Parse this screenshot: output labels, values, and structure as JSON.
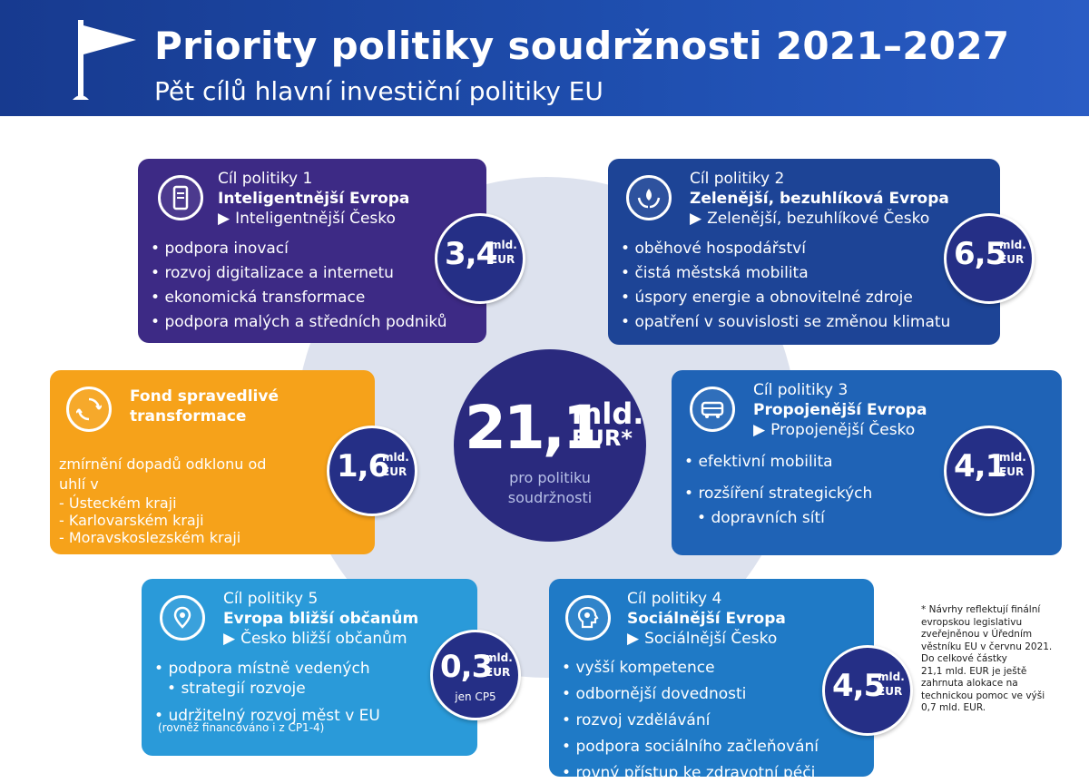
{
  "header": {
    "title": "Priority politiky soudržnosti 2021–2027",
    "subtitle": "Pět cílů hlavní investiční politiky EU",
    "icon": "flag-icon"
  },
  "center": {
    "amount": "21,1",
    "unit_top": "mld.",
    "unit_bottom": "EUR*",
    "caption_1": "pro politiku",
    "caption_2": "soudržnosti"
  },
  "goals": [
    {
      "number": "Cíl politiky 1",
      "name": "Inteligentnější Evropa",
      "cz": "Inteligentnější Česko",
      "icon": "smartphone-icon",
      "amount": "3,4",
      "bullets": [
        "podpora inovací",
        "rozvoj digitalizace a internetu",
        "ekonomická transformace",
        "podpora malých a středních podniků"
      ]
    },
    {
      "number": "Cíl politiky 2",
      "name": "Zelenější, bezuhlíková Evropa",
      "cz": "Zelenější, bezuhlíkové Česko",
      "icon": "leaf-hands-icon",
      "amount": "6,5",
      "bullets": [
        "oběhové hospodářství",
        "čistá městská mobilita",
        "úspory energie a obnovitelné zdroje",
        "opatření v souvislosti se změnou klimatu"
      ]
    },
    {
      "number": "Cíl politiky 3",
      "name": "Propojenější Evropa",
      "cz": "Propojenější Česko",
      "icon": "bus-icon",
      "amount": "4,1",
      "bullets": [
        "efektivní mobilita",
        "rozšíření strategických",
        "dopravních sítí"
      ]
    },
    {
      "number": "Cíl politiky 4",
      "name": "Sociálnější Evropa",
      "cz": "Sociálnější Česko",
      "icon": "head-gear-icon",
      "amount": "4,5",
      "bullets": [
        "vyšší kompetence",
        "odbornější dovednosti",
        "rozvoj vzdělávání",
        "podpora sociálního začleňování",
        "rovný přístup ke zdravotní péči"
      ]
    },
    {
      "number": "Cíl politiky 5",
      "name": "Evropa bližší občanům",
      "cz": "Česko bližší občanům",
      "icon": "map-pin-icon",
      "amount": "0,3",
      "amount_note": "jen CP5",
      "bullets": [
        "podpora místně vedených",
        "strategií rozvoje",
        "udržitelný rozvoj měst v EU"
      ],
      "note": "(rovněž financováno i z CP1-4)"
    }
  ],
  "fund": {
    "title_1": "Fond spravedlivé",
    "title_2": "transformace",
    "icon": "recycle-icon",
    "text_1": "zmírnění dopadů odklonu od",
    "text_2": "uhlí v",
    "regions": [
      "Ústeckém kraji",
      "Karlovarském kraji",
      "Moravskoslezském kraji"
    ],
    "amount": "1,6"
  },
  "units": {
    "top": "mld.",
    "bottom": "EUR"
  },
  "footnote": [
    "* Návrhy reflektují finální",
    "evropskou legislativu",
    "zveřejněnou v Úředním",
    "věstníku EU v červnu 2021.",
    "Do celkové částky",
    "21,1 mld. EUR je ještě",
    "zahrnuta alokace na",
    "technickou pomoc ve výši",
    "0,7 mld. EUR."
  ],
  "colors": {
    "header": "#1f4fb0",
    "goal1": "#3d2a85",
    "goal2": "#1d4496",
    "goal3": "#1f63b6",
    "goal4": "#1f7ac6",
    "goal5": "#2a9ad9",
    "fund": "#f6a21a",
    "amount_circle": "#252f86",
    "center_circle": "#2a2a7e",
    "disc": "#dde2ee"
  }
}
